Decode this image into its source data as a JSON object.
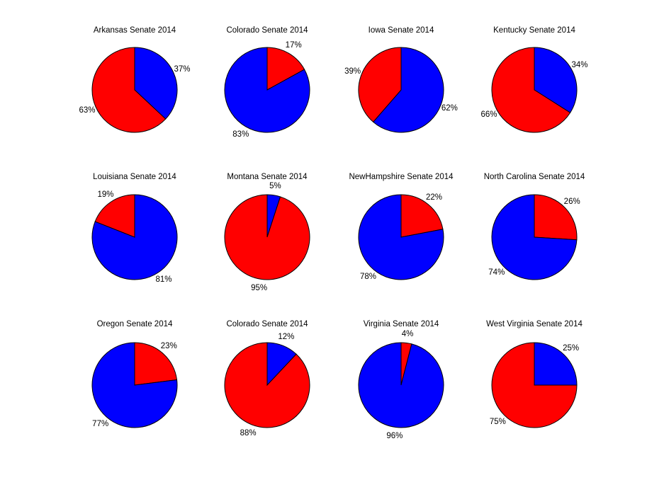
{
  "colors": {
    "blue": "#0000FF",
    "red": "#FF0000",
    "outline": "#000000",
    "background": "#FFFFFF",
    "text": "#000000"
  },
  "chart_data": [
    {
      "type": "pie",
      "title": "Arkansas Senate 2014",
      "labels_position": "outside",
      "start_angle": "12-oclock",
      "direction": "clockwise",
      "slices": [
        {
          "label": "37%",
          "value": 37,
          "color": "blue"
        },
        {
          "label": "63%",
          "value": 63,
          "color": "red"
        }
      ]
    },
    {
      "type": "pie",
      "title": "Colorado Senate 2014",
      "labels_position": "outside",
      "start_angle": "12-oclock",
      "direction": "clockwise",
      "slices": [
        {
          "label": "17%",
          "value": 17,
          "color": "red"
        },
        {
          "label": "83%",
          "value": 83,
          "color": "blue"
        }
      ]
    },
    {
      "type": "pie",
      "title": "Iowa Senate 2014",
      "labels_position": "outside",
      "start_angle": "12-oclock",
      "direction": "clockwise",
      "slices": [
        {
          "label": "62%",
          "value": 62,
          "color": "blue"
        },
        {
          "label": "39%",
          "value": 39,
          "color": "red"
        }
      ]
    },
    {
      "type": "pie",
      "title": "Kentucky Senate 2014",
      "labels_position": "outside",
      "start_angle": "12-oclock",
      "direction": "clockwise",
      "slices": [
        {
          "label": "34%",
          "value": 34,
          "color": "blue"
        },
        {
          "label": "66%",
          "value": 66,
          "color": "red"
        }
      ]
    },
    {
      "type": "pie",
      "title": "Louisiana Senate 2014",
      "labels_position": "outside",
      "start_angle": "12-oclock",
      "direction": "clockwise",
      "slices": [
        {
          "label": "81%",
          "value": 81,
          "color": "blue"
        },
        {
          "label": "19%",
          "value": 19,
          "color": "red"
        }
      ]
    },
    {
      "type": "pie",
      "title": "Montana Senate 2014",
      "labels_position": "outside",
      "start_angle": "12-oclock",
      "direction": "clockwise",
      "slices": [
        {
          "label": "5%",
          "value": 5,
          "color": "blue"
        },
        {
          "label": "95%",
          "value": 95,
          "color": "red"
        }
      ]
    },
    {
      "type": "pie",
      "title": "NewHampshire Senate 2014",
      "labels_position": "outside",
      "start_angle": "12-oclock",
      "direction": "clockwise",
      "slices": [
        {
          "label": "22%",
          "value": 22,
          "color": "red"
        },
        {
          "label": "78%",
          "value": 78,
          "color": "blue"
        }
      ]
    },
    {
      "type": "pie",
      "title": "North Carolina Senate 2014",
      "labels_position": "outside",
      "start_angle": "12-oclock",
      "direction": "clockwise",
      "slices": [
        {
          "label": "26%",
          "value": 26,
          "color": "red"
        },
        {
          "label": "74%",
          "value": 74,
          "color": "blue"
        }
      ]
    },
    {
      "type": "pie",
      "title": "Oregon Senate 2014",
      "labels_position": "outside",
      "start_angle": "12-oclock",
      "direction": "clockwise",
      "slices": [
        {
          "label": "23%",
          "value": 23,
          "color": "red"
        },
        {
          "label": "77%",
          "value": 77,
          "color": "blue"
        }
      ]
    },
    {
      "type": "pie",
      "title": "Colorado Senate 2014",
      "labels_position": "outside",
      "start_angle": "12-oclock",
      "direction": "clockwise",
      "slices": [
        {
          "label": "12%",
          "value": 12,
          "color": "blue"
        },
        {
          "label": "88%",
          "value": 88,
          "color": "red"
        }
      ]
    },
    {
      "type": "pie",
      "title": "Virginia Senate 2014",
      "labels_position": "outside",
      "start_angle": "12-oclock",
      "direction": "clockwise",
      "slices": [
        {
          "label": "4%",
          "value": 4,
          "color": "red"
        },
        {
          "label": "96%",
          "value": 96,
          "color": "blue"
        }
      ]
    },
    {
      "type": "pie",
      "title": "West Virginia Senate 2014",
      "labels_position": "outside",
      "start_angle": "12-oclock",
      "direction": "clockwise",
      "slices": [
        {
          "label": "25%",
          "value": 25,
          "color": "blue"
        },
        {
          "label": "75%",
          "value": 75,
          "color": "red"
        }
      ]
    }
  ]
}
